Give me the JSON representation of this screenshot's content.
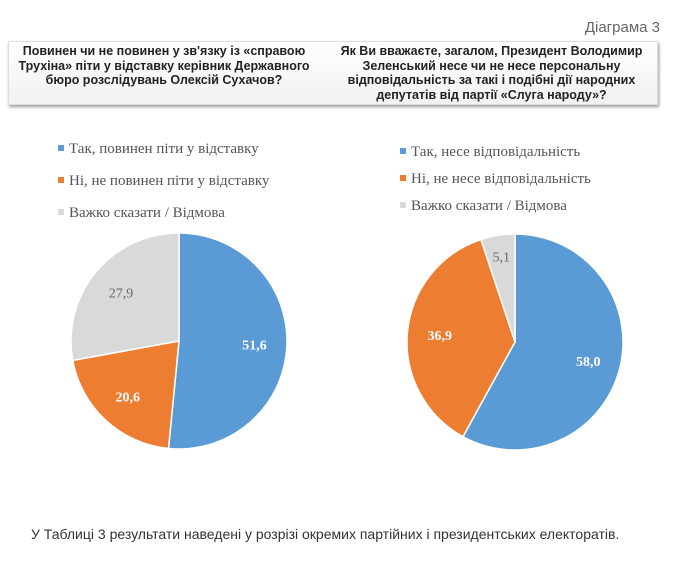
{
  "header": {
    "diagram_label": "Діаграма 3"
  },
  "questions": [
    "Повинен чи не повинен у зв'язку із «справою Трухіна» піти у відставку керівник Державного бюро розслідувань Олексій Сухачов?",
    "Як Ви вважаєте, загалом, Президент Володимир Зеленський несе чи не несе персональну відповідальність за такі і подібні дії народних депутатів від партії «Слуга народу»?"
  ],
  "chart_data": [
    {
      "type": "pie",
      "title": "Повинен чи не повинен у зв'язку із «справою Трухіна» піти у відставку керівник Державного бюро розслідувань Олексій Сухачов?",
      "labels": [
        "Так, повинен піти у відставку",
        "Ні, не повинен піти у відставку",
        "Важко сказати / Відмова"
      ],
      "values": [
        51.6,
        20.6,
        27.9
      ],
      "value_labels": [
        "51,6",
        "20,6",
        "27,9"
      ],
      "colors": [
        "#5b9bd5",
        "#ed7d31",
        "#d9d9d9"
      ],
      "legend": "top-left"
    },
    {
      "type": "pie",
      "title": "Як Ви вважаєте, загалом, Президент Володимир Зеленський несе чи не несе персональну відповідальність за такі і подібні дії народних депутатів від партії «Слуга народу»?",
      "labels": [
        "Так, несе відповідальність",
        "Ні, не несе відповідальність",
        "Важко сказати / Відмова"
      ],
      "values": [
        58.0,
        36.9,
        5.1
      ],
      "value_labels": [
        "58,0",
        "36,9",
        "5,1"
      ],
      "colors": [
        "#5b9bd5",
        "#ed7d31",
        "#d9d9d9"
      ],
      "legend": "top-left"
    }
  ],
  "footer": {
    "text": "У Таблиці 3 результати наведені у розрізі окремих партійних і президентських електоратів."
  }
}
